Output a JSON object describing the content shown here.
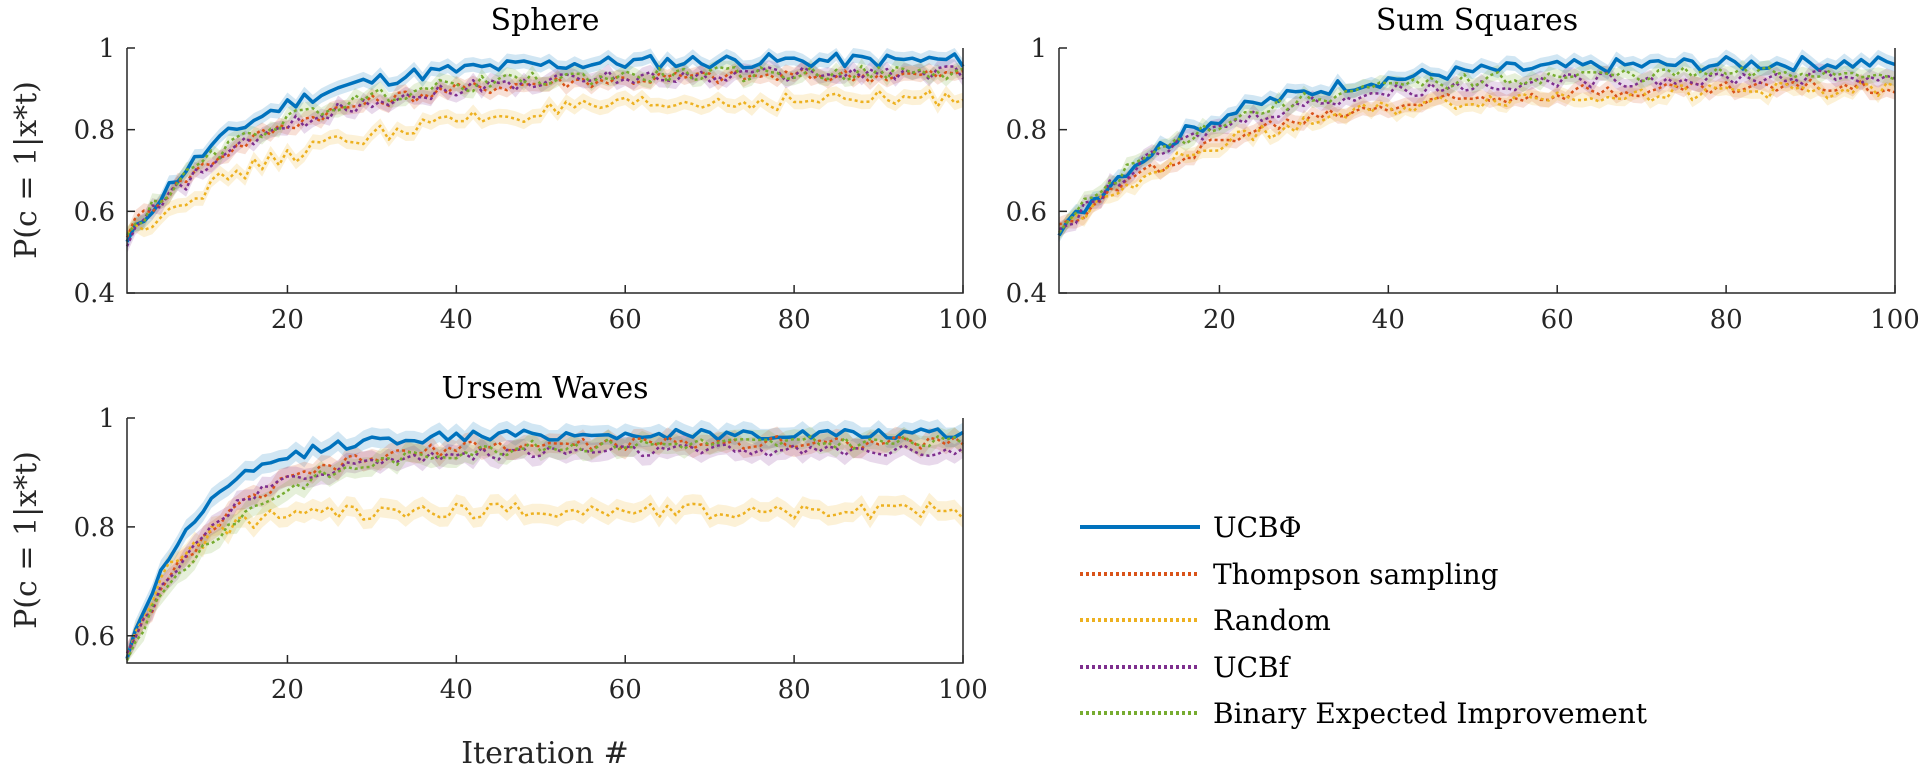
{
  "figure": {
    "xlabel": "Iteration #",
    "ylabel": "P(c = 1|x*t)"
  },
  "legend": [
    {
      "label": "UCBΦ",
      "color": "#0072BD",
      "style": "solid"
    },
    {
      "label": "Thompson sampling",
      "color": "#D95319",
      "style": "dotted"
    },
    {
      "label": "Random",
      "color": "#EDB120",
      "style": "dotted"
    },
    {
      "label": "UCBf",
      "color": "#7E2F8E",
      "style": "dotted"
    },
    {
      "label": "Binary Expected Improvement",
      "color": "#77AC30",
      "style": "dotted"
    }
  ],
  "chart_data": [
    {
      "type": "line",
      "title": "Sphere",
      "xlabel": "",
      "ylabel": "P(c = 1|x*t)",
      "xlim": [
        1,
        100
      ],
      "ylim": [
        0.4,
        1
      ],
      "xticks": [
        20,
        40,
        60,
        80,
        100
      ],
      "yticks": [
        0.4,
        0.6,
        0.8,
        1
      ],
      "ytick_labels": [
        "0.4",
        "0.6",
        "0.8",
        "1"
      ],
      "series": [
        {
          "name": "UCBΦ",
          "color": "#0072BD",
          "dashed": false,
          "start": 0.52,
          "end": 0.97,
          "rate": 0.075,
          "noise": 0.018
        },
        {
          "name": "Thompson sampling",
          "color": "#D95319",
          "dashed": true,
          "start": 0.55,
          "end": 0.935,
          "rate": 0.06,
          "noise": 0.018
        },
        {
          "name": "Random",
          "color": "#EDB120",
          "dashed": true,
          "start": 0.54,
          "end": 0.88,
          "rate": 0.045,
          "noise": 0.022
        },
        {
          "name": "UCBf",
          "color": "#7E2F8E",
          "dashed": true,
          "start": 0.53,
          "end": 0.94,
          "rate": 0.06,
          "noise": 0.018
        },
        {
          "name": "Binary Expected Improvement",
          "color": "#77AC30",
          "dashed": true,
          "start": 0.54,
          "end": 0.94,
          "rate": 0.065,
          "noise": 0.018
        }
      ]
    },
    {
      "type": "line",
      "title": "Sum Squares",
      "xlabel": "",
      "ylabel": "",
      "xlim": [
        1,
        100
      ],
      "ylim": [
        0.4,
        1
      ],
      "xticks": [
        20,
        40,
        60,
        80,
        100
      ],
      "yticks": [
        0.4,
        0.6,
        0.8,
        1
      ],
      "ytick_labels": [
        "0.4",
        "0.6",
        "0.8",
        "1"
      ],
      "series": [
        {
          "name": "UCBΦ",
          "color": "#0072BD",
          "dashed": false,
          "start": 0.54,
          "end": 0.965,
          "rate": 0.06,
          "noise": 0.018
        },
        {
          "name": "Thompson sampling",
          "color": "#D95319",
          "dashed": true,
          "start": 0.55,
          "end": 0.91,
          "rate": 0.05,
          "noise": 0.018
        },
        {
          "name": "Random",
          "color": "#EDB120",
          "dashed": true,
          "start": 0.55,
          "end": 0.9,
          "rate": 0.05,
          "noise": 0.02
        },
        {
          "name": "UCBf",
          "color": "#7E2F8E",
          "dashed": true,
          "start": 0.54,
          "end": 0.93,
          "rate": 0.06,
          "noise": 0.018
        },
        {
          "name": "Binary Expected Improvement",
          "color": "#77AC30",
          "dashed": true,
          "start": 0.55,
          "end": 0.94,
          "rate": 0.06,
          "noise": 0.018
        }
      ]
    },
    {
      "type": "line",
      "title": "Ursem Waves",
      "xlabel": "Iteration #",
      "ylabel": "P(c = 1|x*t)",
      "xlim": [
        1,
        100
      ],
      "ylim": [
        0.55,
        1
      ],
      "xticks": [
        20,
        40,
        60,
        80,
        100
      ],
      "yticks": [
        0.6,
        0.8,
        1
      ],
      "ytick_labels": [
        "0.6",
        "0.8",
        "1"
      ],
      "series": [
        {
          "name": "UCBΦ",
          "color": "#0072BD",
          "dashed": false,
          "start": 0.56,
          "end": 0.97,
          "rate": 0.12,
          "noise": 0.01
        },
        {
          "name": "Thompson sampling",
          "color": "#D95319",
          "dashed": true,
          "start": 0.56,
          "end": 0.955,
          "rate": 0.09,
          "noise": 0.012
        },
        {
          "name": "Random",
          "color": "#EDB120",
          "dashed": true,
          "start": 0.56,
          "end": 0.83,
          "rate": 0.18,
          "noise": 0.015
        },
        {
          "name": "UCBf",
          "color": "#7E2F8E",
          "dashed": true,
          "start": 0.56,
          "end": 0.94,
          "rate": 0.1,
          "noise": 0.012
        },
        {
          "name": "Binary Expected Improvement",
          "color": "#77AC30",
          "dashed": true,
          "start": 0.56,
          "end": 0.955,
          "rate": 0.08,
          "noise": 0.012
        }
      ]
    }
  ]
}
